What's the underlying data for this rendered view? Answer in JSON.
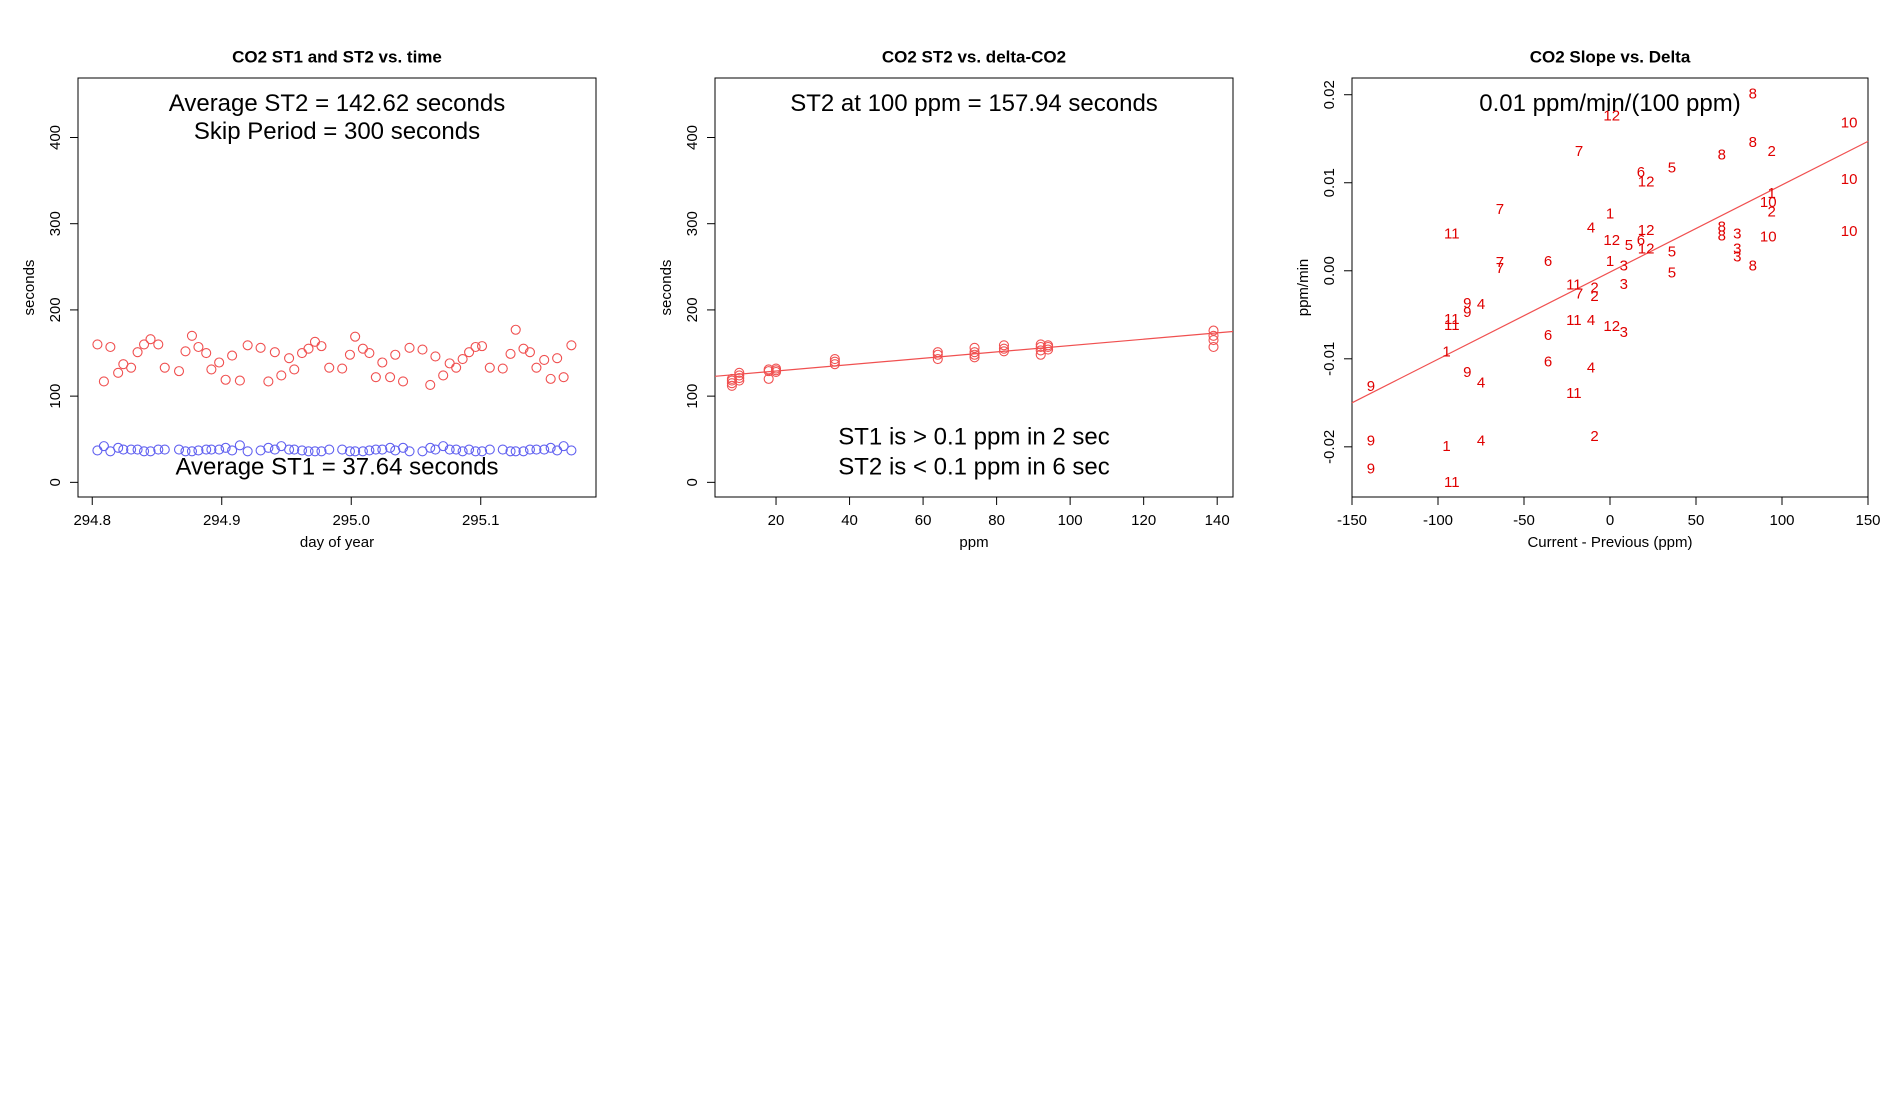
{
  "chart_data": [
    {
      "type": "scatter",
      "title": "CO2 ST1 and ST2 vs. time",
      "xlabel": "day of year",
      "ylabel": "seconds",
      "annotations": [
        "Average ST2 =  142.62  seconds",
        "Skip Period =  300  seconds",
        "Average ST1 =  37.64  seconds"
      ],
      "x": [
        294.804,
        294.809,
        294.814,
        294.82,
        294.824,
        294.83,
        294.835,
        294.84,
        294.845,
        294.851,
        294.856,
        294.867,
        294.872,
        294.877,
        294.882,
        294.888,
        294.892,
        294.898,
        294.903,
        294.908,
        294.914,
        294.92,
        294.93,
        294.936,
        294.941,
        294.946,
        294.952,
        294.956,
        294.962,
        294.967,
        294.972,
        294.977,
        294.983,
        294.993,
        294.999,
        295.003,
        295.009,
        295.014,
        295.019,
        295.024,
        295.03,
        295.034,
        295.04,
        295.045,
        295.055,
        295.061,
        295.065,
        295.071,
        295.076,
        295.081,
        295.086,
        295.091,
        295.096,
        295.101,
        295.107,
        295.117,
        295.123,
        295.127,
        295.133,
        295.138,
        295.143,
        295.149,
        295.154,
        295.159,
        295.164,
        295.17
      ],
      "series": [
        {
          "color": "#f05050",
          "values": [
            160,
            117,
            157,
            127,
            137,
            133,
            151,
            160,
            166,
            160,
            133,
            129,
            152,
            170,
            157,
            150,
            131,
            139,
            119,
            147,
            118,
            159,
            156,
            117,
            151,
            124,
            144,
            131,
            150,
            155,
            163,
            158,
            133,
            132,
            148,
            169,
            155,
            150,
            122,
            139,
            122,
            148,
            117,
            156,
            154,
            113,
            146,
            124,
            138,
            133,
            143,
            151,
            157,
            158,
            133,
            132,
            149,
            177,
            155,
            151,
            133,
            142,
            120,
            144,
            122,
            159
          ]
        },
        {
          "color": "#6060f0",
          "values": [
            37,
            42,
            36,
            40,
            38,
            38,
            38,
            36,
            36,
            38,
            38,
            38,
            36,
            36,
            37,
            38,
            38,
            38,
            40,
            37,
            43,
            36,
            37,
            40,
            38,
            42,
            38,
            38,
            37,
            36,
            36,
            36,
            38,
            38,
            36,
            36,
            36,
            37,
            38,
            38,
            40,
            37,
            40,
            36,
            36,
            40,
            38,
            42,
            38,
            38,
            36,
            38,
            36,
            36,
            38,
            38,
            36,
            36,
            36,
            38,
            38,
            38,
            40,
            37,
            42,
            37
          ]
        }
      ],
      "xlim": [
        294.789,
        295.189
      ],
      "xticks": [
        294.8,
        294.9,
        {
          "value": 295.0,
          "label": "295.0"
        },
        295.1
      ],
      "ylim": [
        -17,
        469
      ],
      "yticks": [
        0,
        100,
        200,
        300,
        400
      ]
    },
    {
      "type": "scatter",
      "title": "CO2 ST2 vs. delta-CO2",
      "xlabel": "ppm",
      "ylabel": "seconds",
      "annotations": [
        "ST2 at 100 ppm =  157.94  seconds",
        "ST1 is > 0.1 ppm in 2 sec",
        "ST2 is < 0.1 ppm in 6 sec"
      ],
      "x": [
        8,
        8,
        8,
        8,
        10,
        10,
        10,
        10,
        18,
        18,
        18,
        20,
        20,
        20,
        36,
        36,
        36,
        64,
        64,
        64,
        74,
        74,
        74,
        74,
        82,
        82,
        82,
        92,
        92,
        92,
        92,
        94,
        94,
        94,
        139,
        139,
        139,
        139
      ],
      "series": [
        {
          "color": "#f05050",
          "values": [
            112,
            115,
            118,
            120,
            118,
            121,
            124,
            127,
            120,
            129,
            131,
            128,
            130,
            132,
            137,
            140,
            143,
            143,
            148,
            151,
            145,
            148,
            151,
            156,
            152,
            155,
            159,
            148,
            153,
            157,
            160,
            154,
            157,
            159,
            157,
            165,
            170,
            176
          ]
        }
      ],
      "fit_line": {
        "color": "#f05050",
        "x": [
          3.4,
          144.3
        ],
        "y": [
          123,
          175
        ]
      },
      "xlim": [
        3.4,
        144.3
      ],
      "xticks": [
        20,
        40,
        60,
        80,
        100,
        120,
        140
      ],
      "ylim": [
        -17,
        469
      ],
      "yticks": [
        0,
        100,
        200,
        300,
        400
      ]
    },
    {
      "type": "scatter",
      "title": "CO2 Slope vs. Delta",
      "xlabel": "Current - Previous (ppm)",
      "ylabel": "ppm/min",
      "annotations": [
        "0.01  ppm/min/(100 ppm)"
      ],
      "x": [
        83,
        139,
        1,
        -18,
        65,
        83,
        94,
        18,
        21,
        36,
        139,
        94,
        92,
        94,
        -64,
        0,
        -11,
        -92,
        65,
        65,
        74,
        92,
        139,
        21,
        1,
        18,
        11,
        21,
        36,
        74,
        74,
        -64,
        -64,
        -36,
        0,
        8,
        36,
        83,
        8,
        -21,
        -18,
        -9,
        -9,
        -83,
        -75,
        -83,
        -92,
        -92,
        -21,
        -11,
        1,
        8,
        -36,
        -95,
        -36,
        -11,
        -83,
        -75,
        -139,
        -21,
        -75,
        -9,
        -139,
        -95,
        -139,
        -92
      ],
      "series": [
        {
          "color": "#e00000",
          "labels": [
            "8",
            "10",
            "12",
            "7",
            "8",
            "8",
            "2",
            "6",
            "12",
            "5",
            "10",
            "1",
            "10",
            "2",
            "7",
            "1",
            "4",
            "11",
            "8",
            "8",
            "3",
            "10",
            "10",
            "12",
            "12",
            "6",
            "5",
            "12",
            "5",
            "3",
            "3",
            "7",
            "7",
            "6",
            "1",
            "3",
            "5",
            "8",
            "3",
            "11",
            "7",
            "2",
            "2",
            "9",
            "4",
            "9",
            "11",
            "11",
            "11",
            "4",
            "12",
            "3",
            "6",
            "1",
            "6",
            "4",
            "9",
            "4",
            "9",
            "11",
            "4",
            "2",
            "9",
            "1",
            "9",
            "11"
          ],
          "values": [
            0.02,
            0.0167,
            0.0175,
            0.0135,
            0.0131,
            0.0145,
            0.0135,
            0.0111,
            0.01,
            0.0116,
            0.0103,
            0.0087,
            0.0077,
            0.0066,
            0.0069,
            0.0064,
            0.0048,
            0.0041,
            0.0049,
            0.0039,
            0.0041,
            0.0038,
            0.0044,
            0.0045,
            0.0034,
            0.0034,
            0.0028,
            0.0024,
            0.0021,
            0.0024,
            0.0015,
            0.0009,
            0.0002,
            0.001,
            0.001,
            0.0005,
            -0.0003,
            0.0005,
            -0.0016,
            -0.0017,
            -0.0027,
            -0.002,
            -0.003,
            -0.0038,
            -0.0039,
            -0.0048,
            -0.0056,
            -0.0063,
            -0.0057,
            -0.0057,
            -0.0064,
            -0.0071,
            -0.0074,
            -0.0093,
            -0.0104,
            -0.0111,
            -0.0116,
            -0.0128,
            -0.0132,
            -0.014,
            -0.0194,
            -0.0189,
            -0.0194,
            -0.02,
            -0.0226,
            -0.0241
          ]
        }
      ],
      "fit_line": {
        "color": "#f05050",
        "x": [
          -150,
          150
        ],
        "y": [
          -0.015,
          0.0147
        ]
      },
      "xlim": [
        -150,
        150
      ],
      "xticks": [
        -150,
        -100,
        -50,
        0,
        50,
        100,
        150
      ],
      "ylim": [
        -0.0257,
        0.0219
      ],
      "yticks": [
        -0.02,
        -0.01,
        {
          "value": 0,
          "label": "0.00"
        },
        0.01,
        0.02
      ]
    }
  ]
}
